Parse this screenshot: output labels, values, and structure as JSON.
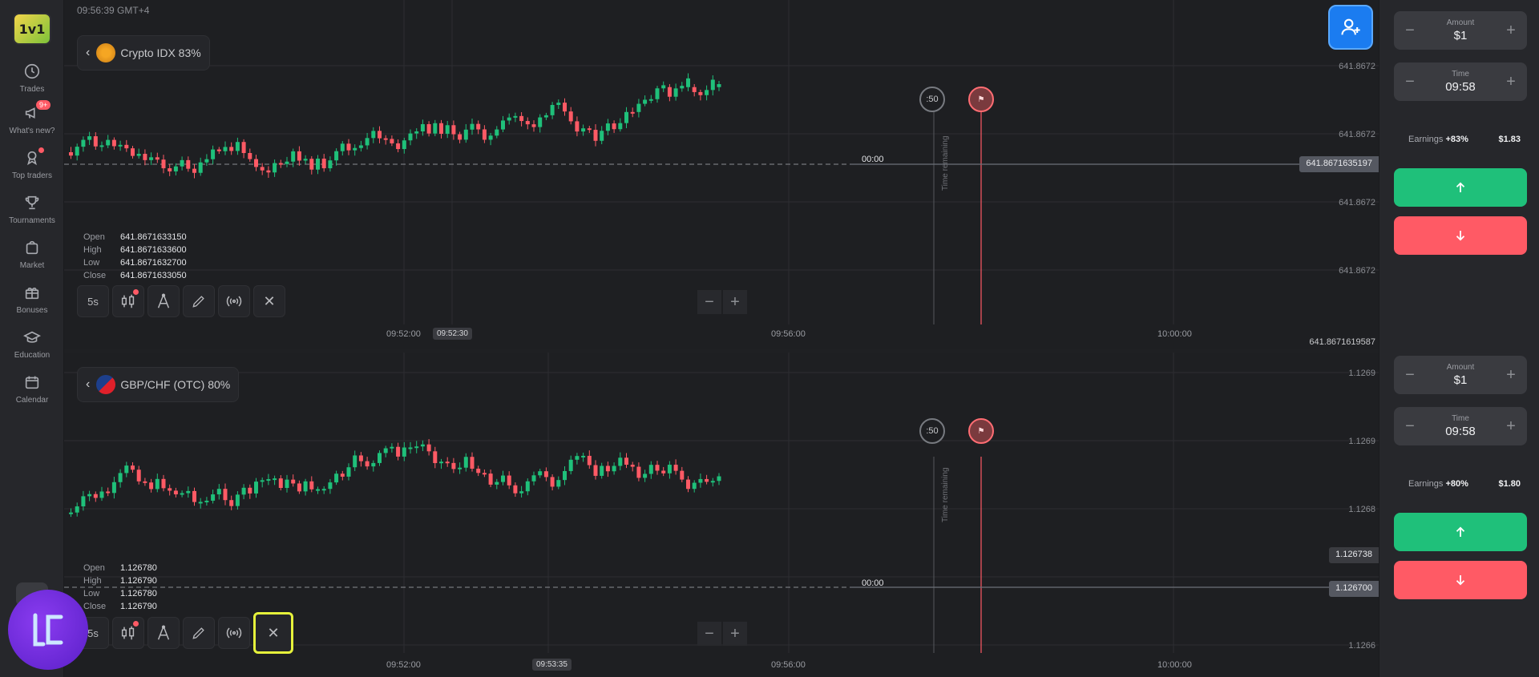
{
  "header": {
    "clock": "09:56:39 GMT+4"
  },
  "sidebar": {
    "logo": "1v1",
    "items": [
      {
        "label": "Trades",
        "icon": "clock-icon"
      },
      {
        "label": "What's new?",
        "icon": "megaphone-icon",
        "badge": "9+"
      },
      {
        "label": "Top traders",
        "icon": "award-icon",
        "dot": true
      },
      {
        "label": "Tournaments",
        "icon": "trophy-icon"
      },
      {
        "label": "Market",
        "icon": "shopping-bag-icon"
      },
      {
        "label": "Bonuses",
        "icon": "gift-icon"
      },
      {
        "label": "Education",
        "icon": "graduation-cap-icon"
      },
      {
        "label": "Calendar",
        "icon": "calendar-icon"
      }
    ]
  },
  "panel1": {
    "asset": "Crypto IDX 83%",
    "ohlc": {
      "open_label": "Open",
      "open": "641.8671633150",
      "high_label": "High",
      "high": "641.8671633600",
      "low_label": "Low",
      "low": "641.8671632700",
      "close_label": "Close",
      "close": "641.8671633050"
    },
    "timeframe": "5s",
    "price_ticks": [
      "641.8672",
      "641.8672",
      "641.8672",
      "641.8672"
    ],
    "current_price": "641.8671635197",
    "bottom_price": "641.8671619587",
    "time_ticks": [
      "09:52:00",
      "09:56:00",
      "10:00:00"
    ],
    "time_cursor": "09:52:30",
    "timer": ":50",
    "time_remaining": "Time remaining",
    "zero": "00:00"
  },
  "panel2": {
    "asset": "GBP/CHF (OTC) 80%",
    "ohlc": {
      "open_label": "Open",
      "open": "1.126780",
      "high_label": "High",
      "high": "1.126790",
      "low_label": "Low",
      "low": "1.126780",
      "close_label": "Close",
      "close": "1.126790"
    },
    "timeframe": "5s",
    "price_ticks": [
      "1.1269",
      "1.1269",
      "1.1268",
      "1.1266"
    ],
    "mid_price": "1.126738",
    "current_price": "1.126700",
    "time_ticks": [
      "09:52:00",
      "09:56:00",
      "10:00:00"
    ],
    "time_cursor": "09:53:35",
    "timer": ":50",
    "time_remaining": "Time remaining",
    "zero": "00:00"
  },
  "trade1": {
    "amount_label": "Amount",
    "amount": "$1",
    "time_label": "Time",
    "time": "09:58",
    "earnings_label": "Earnings",
    "earnings_pct": "+83%",
    "earnings_val": "$1.83"
  },
  "trade2": {
    "amount_label": "Amount",
    "amount": "$1",
    "time_label": "Time",
    "time": "09:58",
    "earnings_label": "Earnings",
    "earnings_pct": "+80%",
    "earnings_val": "$1.80"
  },
  "colors": {
    "up": "#1fc07a",
    "down": "#ff5a65",
    "accent": "#1b7cf0",
    "highlight": "#e6f23b"
  }
}
